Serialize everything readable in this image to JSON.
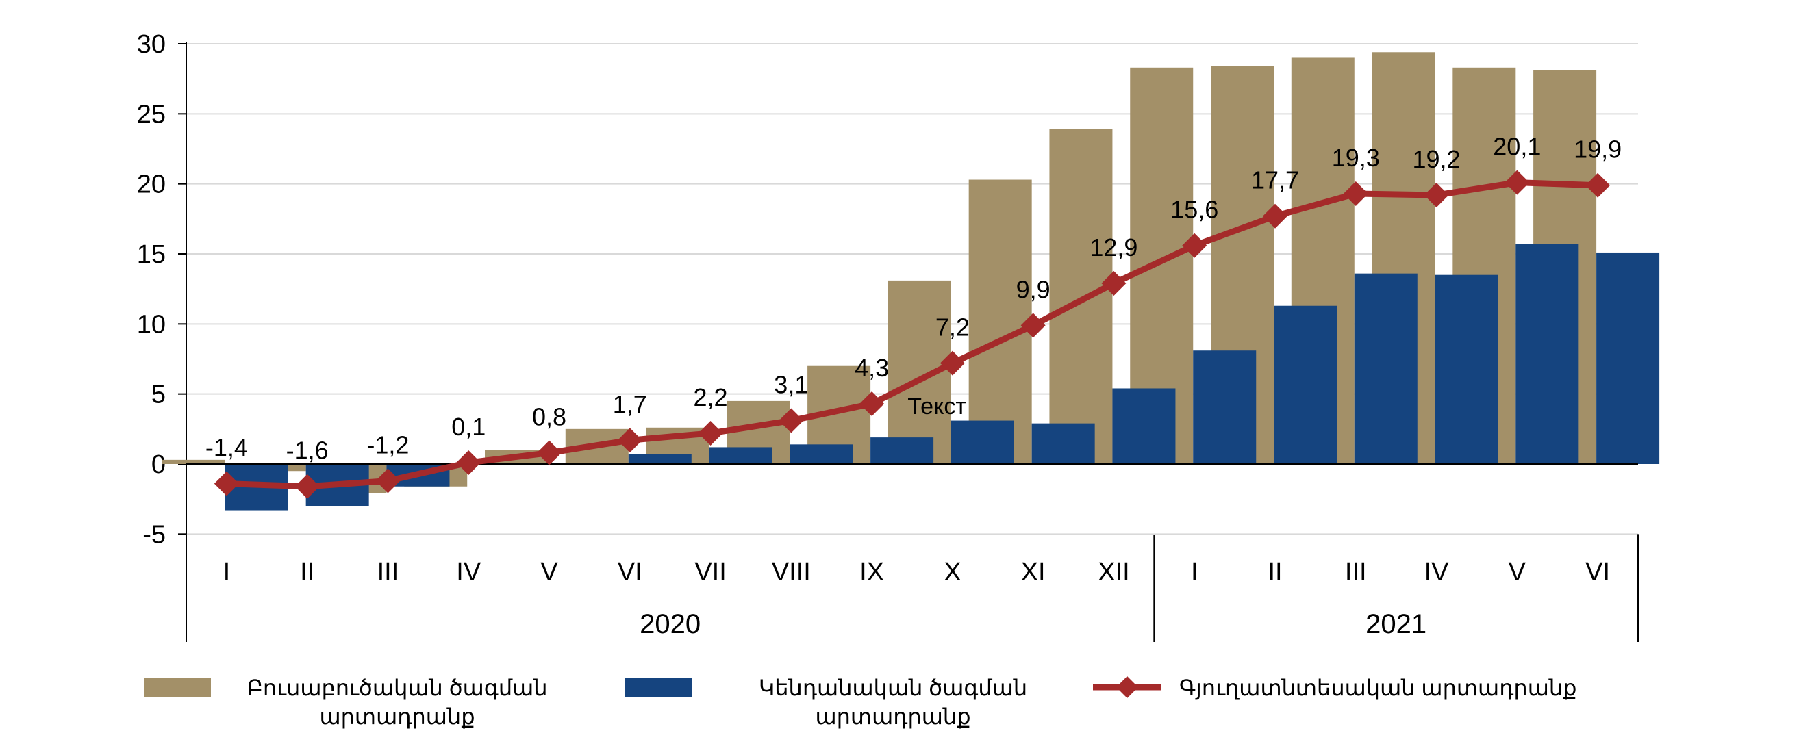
{
  "chart_data": {
    "type": "bar",
    "categories": [
      "I",
      "II",
      "III",
      "IV",
      "V",
      "VI",
      "VII",
      "VIII",
      "IX",
      "X",
      "XI",
      "XII",
      "I",
      "II",
      "III",
      "IV",
      "V",
      "VI"
    ],
    "groups": [
      {
        "label": "2020",
        "count": 12
      },
      {
        "label": "2021",
        "count": 6
      }
    ],
    "series": [
      {
        "name": "Բուսաբուծական ծագման արտադրանք",
        "name_lines": [
          "Բուսաբուծական ծագման",
          "արտադրանք"
        ],
        "kind": "bar",
        "color": "#A39068",
        "values": [
          0.3,
          -0.5,
          -2.1,
          -1.6,
          1.0,
          2.5,
          2.6,
          4.5,
          7.0,
          13.1,
          20.3,
          23.9,
          28.3,
          28.4,
          29.0,
          29.4,
          28.3,
          28.1
        ]
      },
      {
        "name": "Կենդանական ծագման արտադրանք",
        "name_lines": [
          "Կենդանական ծագման",
          "արտադրանք"
        ],
        "kind": "bar",
        "color": "#15447F",
        "values": [
          -3.3,
          -3.0,
          -1.6,
          0.0,
          0.0,
          0.7,
          1.2,
          1.4,
          1.9,
          3.1,
          2.9,
          5.4,
          8.1,
          11.3,
          13.6,
          13.5,
          15.7,
          15.1
        ]
      },
      {
        "name": "Գյուղատնտեսական արտադրանք",
        "name_lines": [
          "Գյուղատնտեսական արտադրանք"
        ],
        "kind": "line",
        "color": "#A52A2A",
        "values": [
          -1.4,
          -1.6,
          -1.2,
          0.1,
          0.8,
          1.7,
          2.2,
          3.1,
          4.3,
          7.2,
          9.9,
          12.9,
          15.6,
          17.7,
          19.3,
          19.2,
          20.1,
          19.9
        ],
        "labels": [
          "-1,4",
          "-1,6",
          "-1,2",
          "0,1",
          "0,8",
          "1,7",
          "2,2",
          "3,1",
          "4,3",
          "7,2",
          "9,9",
          "12,9",
          "15,6",
          "17,7",
          "19,3",
          "19,2",
          "20,1",
          "19,9"
        ]
      }
    ],
    "y_ticks": [
      "30",
      "25",
      "20",
      "15",
      "10",
      "5",
      "0",
      "-5"
    ],
    "ylim": [
      -5,
      30
    ],
    "grid": true,
    "legend": "bottom",
    "annotation": "Текст"
  }
}
